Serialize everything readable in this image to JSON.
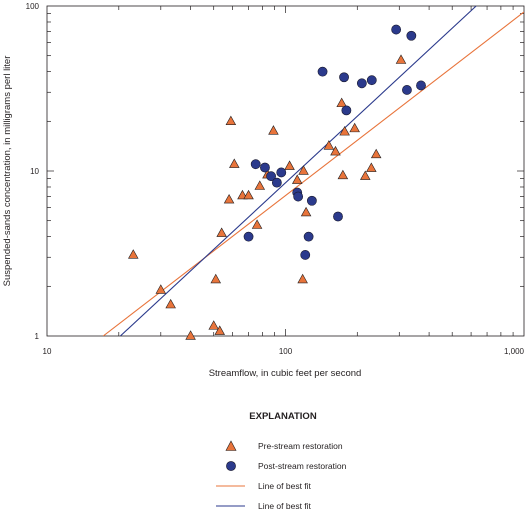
{
  "chart_data": {
    "type": "scatter",
    "x_scale": "log",
    "y_scale": "log",
    "xlabel": "Streamflow, in cubic feet per second",
    "ylabel": "Suspended-sands concentration, in milligrams perl liter",
    "xlim": [
      10,
      1000
    ],
    "ylim": [
      1,
      100
    ],
    "x_ticks": [
      "10",
      "100",
      "1,000"
    ],
    "y_ticks": [
      "1",
      "10",
      "100"
    ],
    "grid": false,
    "legend_title": "EXPLANATION",
    "legend_placement": "bottom-center",
    "series": [
      {
        "name": "Pre-stream restoration",
        "marker": "triangle",
        "color": "#e8743b",
        "points": [
          [
            23,
            3.1
          ],
          [
            30,
            1.9
          ],
          [
            33,
            1.55
          ],
          [
            40,
            1.0
          ],
          [
            50,
            1.15
          ],
          [
            51,
            2.2
          ],
          [
            53,
            1.07
          ],
          [
            54,
            4.2
          ],
          [
            58,
            6.7
          ],
          [
            59,
            20.0
          ],
          [
            61,
            11.0
          ],
          [
            66,
            7.1
          ],
          [
            70,
            7.1
          ],
          [
            76,
            4.7
          ],
          [
            78,
            8.1
          ],
          [
            84,
            9.5
          ],
          [
            89,
            17.5
          ],
          [
            104,
            10.7
          ],
          [
            112,
            8.8
          ],
          [
            118,
            2.2
          ],
          [
            119,
            10.0
          ],
          [
            122,
            5.6
          ],
          [
            152,
            14.2
          ],
          [
            162,
            13.1
          ],
          [
            172,
            25.7
          ],
          [
            174,
            9.4
          ],
          [
            177,
            17.3
          ],
          [
            195,
            18.1
          ],
          [
            216,
            9.3
          ],
          [
            229,
            10.4
          ],
          [
            240,
            12.6
          ],
          [
            305,
            47.0
          ]
        ]
      },
      {
        "name": "Post-stream restoration",
        "marker": "circle",
        "color": "#2b3a8c",
        "points": [
          [
            70,
            4.0
          ],
          [
            75,
            11.0
          ],
          [
            82,
            10.5
          ],
          [
            87,
            9.3
          ],
          [
            92,
            8.5
          ],
          [
            96,
            9.8
          ],
          [
            112,
            7.4
          ],
          [
            113,
            7.0
          ],
          [
            121,
            3.1
          ],
          [
            125,
            4.0
          ],
          [
            129,
            6.6
          ],
          [
            143,
            40.0
          ],
          [
            166,
            5.3
          ],
          [
            176,
            37.0
          ],
          [
            180,
            23.3
          ],
          [
            209,
            34.0
          ],
          [
            230,
            35.5
          ],
          [
            291,
            72.0
          ],
          [
            323,
            31.0
          ],
          [
            337,
            66.0
          ],
          [
            370,
            33.0
          ]
        ]
      }
    ],
    "fit_lines": [
      {
        "name": "Line of best fit",
        "color": "#e8743b",
        "x": [
          17.2,
          1000
        ],
        "y": [
          1.0,
          92.0
        ]
      },
      {
        "name": "Line of best fit",
        "color": "#2b3a8c",
        "x": [
          20.3,
          630
        ],
        "y": [
          1.0,
          100.0
        ]
      }
    ]
  }
}
